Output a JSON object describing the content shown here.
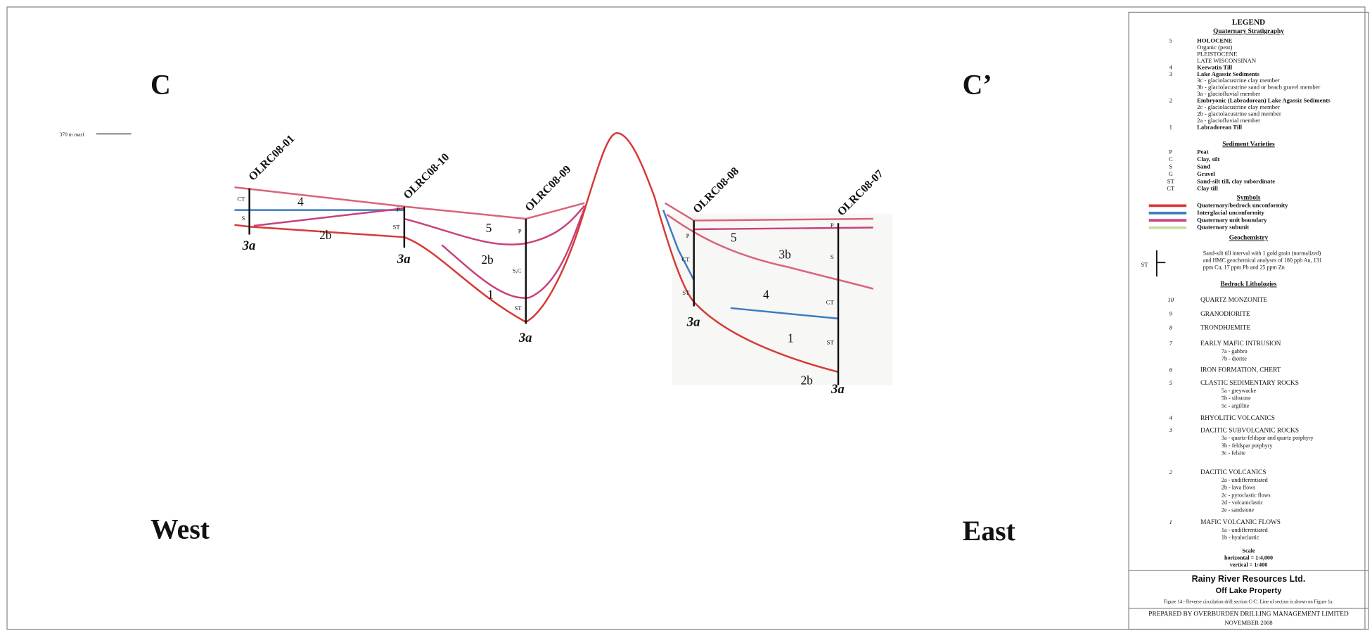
{
  "section": {
    "left_mark": "C",
    "right_mark": "C’",
    "west": "West",
    "east": "East",
    "datum": "370 m masl",
    "holes": [
      {
        "name": "OLRC08-01",
        "base": "3a",
        "logs": [
          "CT",
          "S"
        ]
      },
      {
        "name": "OLRC08-10",
        "base": "3a",
        "logs": [
          "P",
          "ST"
        ]
      },
      {
        "name": "OLRC08-09",
        "base": "3a",
        "logs": [
          "P",
          "S,C",
          "ST"
        ]
      },
      {
        "name": "OLRC08-08",
        "base": "3a",
        "logs": [
          "P",
          "CT",
          "ST"
        ]
      },
      {
        "name": "OLRC08-07",
        "base": "3a",
        "logs": [
          "P",
          "S",
          "CT",
          "ST"
        ]
      }
    ],
    "unit_labels": [
      "4",
      "2b",
      "5",
      "2b",
      "1",
      "5",
      "3b",
      "4",
      "1",
      "2b"
    ]
  },
  "legend": {
    "title": "LEGEND",
    "quaternary_heading": "Quaternary Stratigraphy",
    "quaternary": [
      {
        "code": "5",
        "text": "HOLOCENE"
      },
      {
        "text": "Organic (peat)"
      },
      {
        "text": "PLEISTOCENE"
      },
      {
        "text": "LATE WISCONSINAN"
      },
      {
        "code": "4",
        "text": "Keewatin Till"
      },
      {
        "code": "3",
        "text": "Lake Agassiz Sediments"
      },
      {
        "text": "3c - glaciolacustrine clay member"
      },
      {
        "text": "3b - glaciolacustrine sand or beach gravel member"
      },
      {
        "text": "3a - glaciofluvial member"
      },
      {
        "code": "2",
        "text": "Embryonic (Labradorean) Lake Agassiz Sediments"
      },
      {
        "text": "2c - glaciolacustrine clay member"
      },
      {
        "text": "2b - glaciolacustrine sand member"
      },
      {
        "text": "2a - glaciofluvial member"
      },
      {
        "code": "1",
        "text": "Labradorean Till"
      }
    ],
    "sediment_heading": "Sediment Varieties",
    "sediments": [
      {
        "code": "P",
        "text": "Peat"
      },
      {
        "code": "C",
        "text": "Clay, silt"
      },
      {
        "code": "S",
        "text": "Sand"
      },
      {
        "code": "G",
        "text": "Gravel"
      },
      {
        "code": "ST",
        "text": "Sand-silt till, clay subordinate"
      },
      {
        "code": "CT",
        "text": "Clay till"
      }
    ],
    "symbols_heading": "Symbols",
    "symbols": [
      {
        "text": "Quaternary/bedrock unconformity",
        "color": "#d63a36"
      },
      {
        "text": "Interglacial unconformity",
        "color": "#3b7cc2"
      },
      {
        "text": "Quaternary unit boundary",
        "color": "#c8417c"
      },
      {
        "text": "Quaternary subunit",
        "color": "#c9dca0"
      }
    ],
    "geochem_heading": "Geochemistry",
    "geochem_code": "ST",
    "geochem": [
      "Sand-silt till interval with 1 gold grain (normalized)",
      "and HMC geochemical analyses of 180 ppb Au, 131",
      "ppm Cu, 17 ppm Pb and 25 ppm Zn"
    ],
    "bedrock_heading": "Bedrock Lithologies",
    "bedrock": [
      {
        "code": "10",
        "name": "QUARTZ MONZONITE",
        "subunits": []
      },
      {
        "code": "9",
        "name": "GRANODIORITE",
        "subunits": []
      },
      {
        "code": "8",
        "name": "TRONDHJEMITE",
        "subunits": []
      },
      {
        "code": "7",
        "name": "EARLY MAFIC INTRUSION",
        "subunits": [
          "7a - gabbro",
          "7b - diorite"
        ]
      },
      {
        "code": "6",
        "name": "IRON FORMATION, CHERT",
        "subunits": []
      },
      {
        "code": "5",
        "name": "CLASTIC SEDIMENTARY ROCKS",
        "subunits": [
          "5a - greywacke",
          "5b - siltstone",
          "5c - argillite"
        ]
      },
      {
        "code": "4",
        "name": "RHYOLITIC VOLCANICS",
        "subunits": []
      },
      {
        "code": "3",
        "name": "DACITIC SUBVOLCANIC ROCKS",
        "subunits": [
          "3a - quartz-feldspar and quartz porphyry",
          "3b - feldspar porphyry",
          "3c - felsite"
        ]
      },
      {
        "code": "2",
        "name": "DACITIC VOLCANICS",
        "subunits": [
          "2a - undifferentiated",
          "2b - lava flows",
          "2c - pyroclastic flows",
          "2d - volcaniclastic",
          "2e - sandstone"
        ]
      },
      {
        "code": "1",
        "name": "MAFIC VOLCANIC FLOWS",
        "subunits": [
          "1a - undifferentiated",
          "1b - hyaloclastic"
        ]
      }
    ],
    "scale": [
      "Scale",
      "horizontal = 1:4,000",
      "vertical = 1:400"
    ]
  },
  "title_block": {
    "company": "Rainy River Resources Ltd.",
    "property": "Off Lake Property",
    "caption": "Figure 14 - Reverse circulation drill section C-C'. Line of section is shown on Figure 1a.",
    "prepared_by": "PREPARED BY OVERBURDEN DRILLING MANAGEMENT LIMITED",
    "date": "NOVEMBER 2008"
  }
}
